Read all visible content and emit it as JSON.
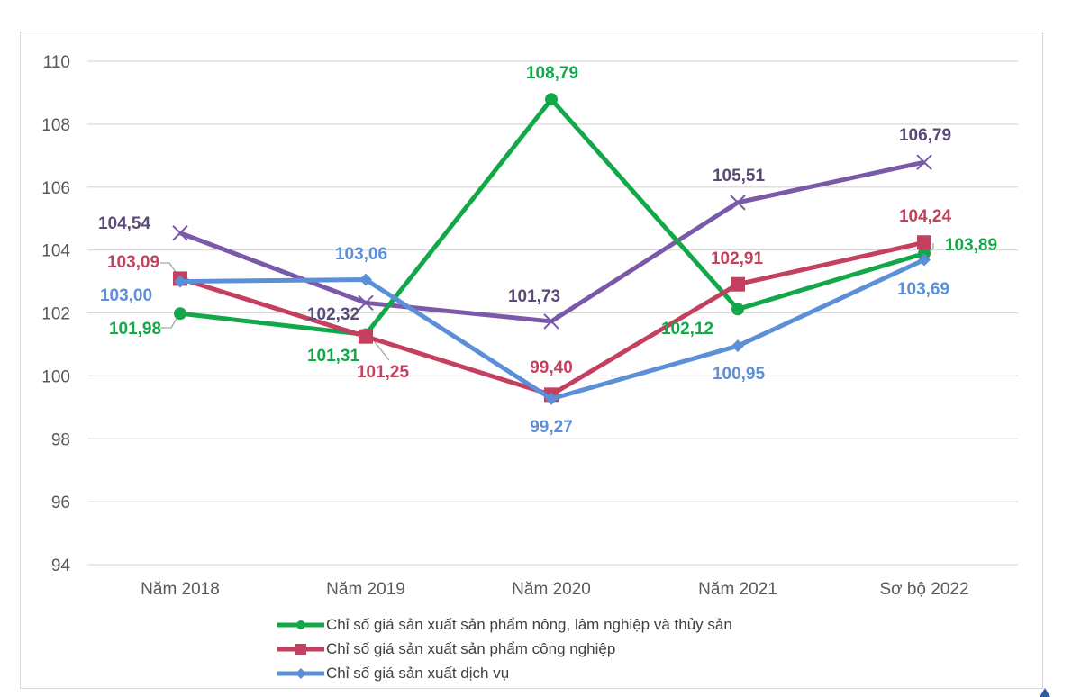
{
  "chart_data": {
    "type": "line",
    "categories": [
      "Năm 2018",
      "Năm 2019",
      "Năm 2020",
      "Năm 2021",
      "Sơ bộ 2022"
    ],
    "ylim": [
      94,
      110
    ],
    "yticks": [
      94,
      96,
      98,
      100,
      102,
      104,
      106,
      108,
      110
    ],
    "grid": true,
    "legend_position": "bottom",
    "series": [
      {
        "name": "Chỉ số giá sản xuất sản phẩm nông, lâm nghiệp và thủy sản",
        "color": "#12a84a",
        "marker": "circle",
        "values": [
          101.98,
          101.31,
          108.79,
          102.12,
          103.89
        ],
        "labels": [
          "101,98",
          "101,31",
          "108,79",
          "102,12",
          "103,89"
        ]
      },
      {
        "name": "Chỉ số giá sản xuất sản phẩm công nghiệp",
        "color": "#c4405f",
        "marker": "square",
        "values": [
          103.09,
          101.25,
          99.4,
          102.91,
          104.24
        ],
        "labels": [
          "103,09",
          "101,25",
          "99,40",
          "102,91",
          "104,24"
        ]
      },
      {
        "name": "Chỉ số giá sản xuất dịch vụ",
        "color": "#5b8fd8",
        "marker": "diamond",
        "values": [
          103.0,
          103.06,
          99.27,
          100.95,
          103.69
        ],
        "labels": [
          "103,00",
          "103,06",
          "99,27",
          "100,95",
          "103,69"
        ]
      },
      {
        "color": "#7a5aa8",
        "label_color": "#5a4a78",
        "marker": "x",
        "values": [
          104.54,
          102.32,
          101.73,
          105.51,
          106.79
        ],
        "labels": [
          "104,54",
          "102,32",
          "101,73",
          "105,51",
          "106,79"
        ]
      }
    ]
  }
}
